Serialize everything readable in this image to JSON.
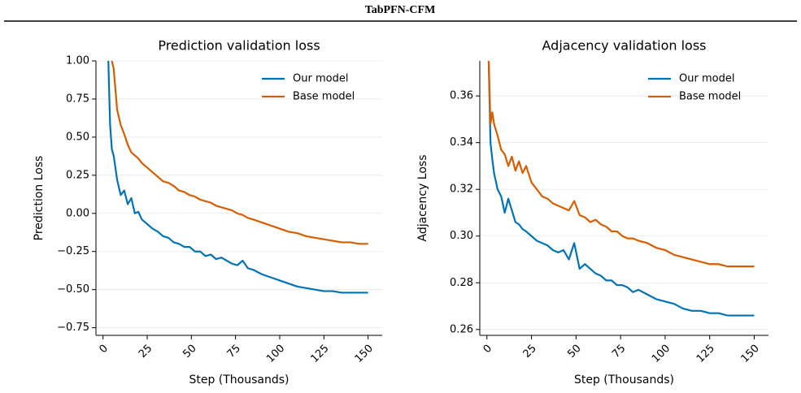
{
  "header": {
    "title": "TabPFN-CFM"
  },
  "chart_data": [
    {
      "type": "line",
      "title": "Prediction validation loss",
      "x_label": "Step (Thousands)",
      "y_label": "Prediction Loss",
      "x": [
        3,
        4,
        5,
        6,
        8,
        10,
        12,
        14,
        16,
        18,
        20,
        22,
        25,
        28,
        31,
        34,
        37,
        40,
        43,
        46,
        49,
        52,
        55,
        58,
        61,
        64,
        67,
        70,
        73,
        76,
        79,
        82,
        85,
        90,
        95,
        100,
        105,
        110,
        115,
        120,
        125,
        130,
        135,
        140,
        145,
        150
      ],
      "series": [
        {
          "name": "Our model",
          "color": "#0173b2",
          "values": [
            1.0,
            0.58,
            0.42,
            0.38,
            0.22,
            0.12,
            0.15,
            0.06,
            0.1,
            0.0,
            0.01,
            -0.04,
            -0.07,
            -0.1,
            -0.12,
            -0.15,
            -0.16,
            -0.19,
            -0.2,
            -0.22,
            -0.22,
            -0.25,
            -0.25,
            -0.28,
            -0.27,
            -0.3,
            -0.29,
            -0.31,
            -0.33,
            -0.34,
            -0.31,
            -0.36,
            -0.37,
            -0.4,
            -0.42,
            -0.44,
            -0.46,
            -0.48,
            -0.49,
            -0.5,
            -0.51,
            -0.51,
            -0.52,
            -0.52,
            -0.52,
            -0.52
          ]
        },
        {
          "name": "Base model",
          "color": "#d55e00",
          "values": [
            null,
            null,
            1.0,
            0.95,
            0.68,
            0.58,
            0.52,
            0.45,
            0.4,
            0.38,
            0.36,
            0.33,
            0.3,
            0.27,
            0.24,
            0.21,
            0.2,
            0.18,
            0.15,
            0.14,
            0.12,
            0.11,
            0.09,
            0.08,
            0.07,
            0.05,
            0.04,
            0.03,
            0.02,
            0.0,
            -0.01,
            -0.03,
            -0.04,
            -0.06,
            -0.08,
            -0.1,
            -0.12,
            -0.13,
            -0.15,
            -0.16,
            -0.17,
            -0.18,
            -0.19,
            -0.19,
            -0.2,
            -0.2
          ]
        }
      ],
      "xlim": [
        -4,
        158
      ],
      "ylim": [
        -0.8,
        1.0
      ],
      "xticks": [
        0,
        25,
        50,
        75,
        100,
        125,
        150
      ],
      "yticks": [
        {
          "value": -0.75,
          "label": "−0.75"
        },
        {
          "value": -0.5,
          "label": "−0.50"
        },
        {
          "value": -0.25,
          "label": "−0.25"
        },
        {
          "value": 0,
          "label": "0.00"
        },
        {
          "value": 0.25,
          "label": "0.25"
        },
        {
          "value": 0.5,
          "label": "0.50"
        },
        {
          "value": 0.75,
          "label": "0.75"
        },
        {
          "value": 1,
          "label": "1.00"
        }
      ],
      "grid": true,
      "legend": "upper right"
    },
    {
      "type": "line",
      "title": "Adjacency validation loss",
      "x_label": "Step (Thousands)",
      "y_label": "Adjacency Loss",
      "x": [
        1,
        2,
        3,
        4,
        6,
        8,
        10,
        12,
        14,
        16,
        18,
        20,
        22,
        25,
        28,
        31,
        34,
        37,
        40,
        43,
        46,
        49,
        52,
        55,
        58,
        61,
        64,
        67,
        70,
        73,
        76,
        79,
        82,
        85,
        90,
        95,
        100,
        105,
        110,
        115,
        120,
        125,
        130,
        135,
        140,
        145,
        150
      ],
      "series": [
        {
          "name": "Our model",
          "color": "#0173b2",
          "values": [
            0.375,
            0.34,
            0.333,
            0.327,
            0.32,
            0.317,
            0.31,
            0.316,
            0.311,
            0.306,
            0.305,
            0.303,
            0.302,
            0.3,
            0.298,
            0.297,
            0.296,
            0.294,
            0.293,
            0.294,
            0.29,
            0.297,
            0.286,
            0.288,
            0.286,
            0.284,
            0.283,
            0.281,
            0.281,
            0.279,
            0.279,
            0.278,
            0.276,
            0.277,
            0.275,
            0.273,
            0.272,
            0.271,
            0.269,
            0.268,
            0.268,
            0.267,
            0.267,
            0.266,
            0.266,
            0.266,
            0.266
          ]
        },
        {
          "name": "Base model",
          "color": "#d55e00",
          "values": [
            0.375,
            0.348,
            0.353,
            0.348,
            0.343,
            0.337,
            0.335,
            0.33,
            0.334,
            0.328,
            0.332,
            0.327,
            0.33,
            0.323,
            0.32,
            0.317,
            0.316,
            0.314,
            0.313,
            0.312,
            0.311,
            0.315,
            0.309,
            0.308,
            0.306,
            0.307,
            0.305,
            0.304,
            0.302,
            0.302,
            0.3,
            0.299,
            0.299,
            0.298,
            0.297,
            0.295,
            0.294,
            0.292,
            0.291,
            0.29,
            0.289,
            0.288,
            0.288,
            0.287,
            0.287,
            0.287,
            0.287
          ]
        }
      ],
      "xlim": [
        -4,
        158
      ],
      "ylim": [
        0.2575,
        0.375
      ],
      "xticks": [
        0,
        25,
        50,
        75,
        100,
        125,
        150
      ],
      "yticks": [
        0.26,
        0.28,
        {
          "value": 0.3,
          "label": "0.30"
        },
        0.32,
        0.34,
        0.36
      ],
      "grid": true,
      "legend": "upper right"
    }
  ]
}
